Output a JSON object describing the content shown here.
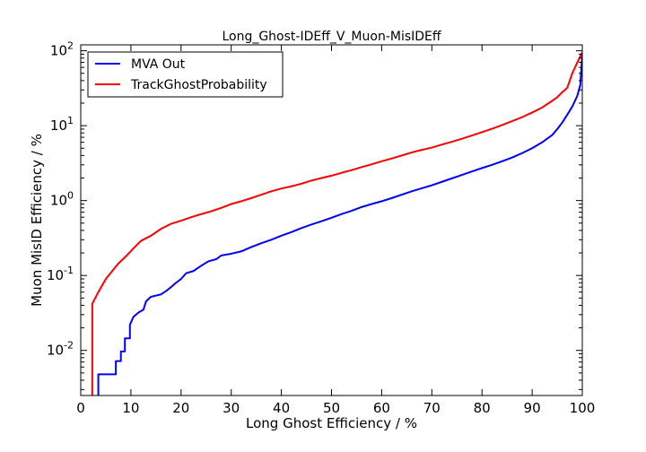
{
  "chart_data": {
    "type": "line",
    "title": "Long_Ghost-IDEff_V_Muon-MisIDEff",
    "xlabel": "Long Ghost Efficiency / %",
    "ylabel": "Muon MisID Efficiency / %",
    "xlim": [
      0,
      100
    ],
    "ylim": [
      0.0025,
      120
    ],
    "yscale": "log",
    "grid": false,
    "legend_position": "top-left",
    "x_ticks": [
      0,
      10,
      20,
      30,
      40,
      50,
      60,
      70,
      80,
      90,
      100
    ],
    "x_tick_labels": [
      "0",
      "10",
      "20",
      "30",
      "40",
      "50",
      "60",
      "70",
      "80",
      "90",
      "100"
    ],
    "y_ticks": [
      0.01,
      0.1,
      1,
      10,
      100
    ],
    "y_tick_labels": [
      {
        "base": "10",
        "exp": "-2"
      },
      {
        "base": "10",
        "exp": "-1"
      },
      {
        "base": "10",
        "exp": "0"
      },
      {
        "base": "10",
        "exp": "1"
      },
      {
        "base": "10",
        "exp": "2"
      }
    ],
    "series": [
      {
        "name": "MVA Out",
        "color": "#0000ff",
        "points": [
          [
            3.5,
            0.0025
          ],
          [
            3.5,
            0.0048
          ],
          [
            7,
            0.0048
          ],
          [
            7,
            0.0072
          ],
          [
            8,
            0.0072
          ],
          [
            8,
            0.0097
          ],
          [
            8.8,
            0.0097
          ],
          [
            8.8,
            0.0145
          ],
          [
            9.8,
            0.0145
          ],
          [
            9.8,
            0.022
          ],
          [
            10.5,
            0.028
          ],
          [
            11.5,
            0.032
          ],
          [
            12.5,
            0.035
          ],
          [
            13,
            0.045
          ],
          [
            14,
            0.052
          ],
          [
            16,
            0.056
          ],
          [
            17,
            0.062
          ],
          [
            18,
            0.07
          ],
          [
            19,
            0.08
          ],
          [
            20,
            0.09
          ],
          [
            21,
            0.107
          ],
          [
            22.5,
            0.115
          ],
          [
            24,
            0.135
          ],
          [
            25.5,
            0.155
          ],
          [
            27,
            0.165
          ],
          [
            28,
            0.185
          ],
          [
            30,
            0.195
          ],
          [
            32,
            0.21
          ],
          [
            34,
            0.24
          ],
          [
            36,
            0.27
          ],
          [
            38,
            0.3
          ],
          [
            40,
            0.34
          ],
          [
            42,
            0.38
          ],
          [
            44,
            0.43
          ],
          [
            46,
            0.48
          ],
          [
            48,
            0.53
          ],
          [
            50,
            0.59
          ],
          [
            52,
            0.66
          ],
          [
            54,
            0.73
          ],
          [
            56,
            0.82
          ],
          [
            58,
            0.9
          ],
          [
            60,
            0.98
          ],
          [
            62,
            1.08
          ],
          [
            64,
            1.2
          ],
          [
            66,
            1.33
          ],
          [
            68,
            1.46
          ],
          [
            70,
            1.6
          ],
          [
            72,
            1.78
          ],
          [
            74,
            1.98
          ],
          [
            76,
            2.2
          ],
          [
            78,
            2.45
          ],
          [
            80,
            2.72
          ],
          [
            82,
            3.0
          ],
          [
            84,
            3.35
          ],
          [
            86,
            3.75
          ],
          [
            88,
            4.3
          ],
          [
            90,
            5.0
          ],
          [
            92,
            6.0
          ],
          [
            94,
            7.5
          ],
          [
            95,
            9.0
          ],
          [
            96,
            11.0
          ],
          [
            97,
            14.0
          ],
          [
            98,
            18.0
          ],
          [
            99,
            25.0
          ],
          [
            99.6,
            35.0
          ],
          [
            100,
            90.0
          ]
        ]
      },
      {
        "name": "TrackGhostProbability",
        "color": "#ff0000",
        "points": [
          [
            2.3,
            0.0025
          ],
          [
            2.3,
            0.042
          ],
          [
            3.5,
            0.06
          ],
          [
            5,
            0.09
          ],
          [
            6.5,
            0.12
          ],
          [
            7.5,
            0.145
          ],
          [
            9,
            0.18
          ],
          [
            10.5,
            0.23
          ],
          [
            12,
            0.29
          ],
          [
            14,
            0.34
          ],
          [
            16,
            0.42
          ],
          [
            18,
            0.49
          ],
          [
            20,
            0.54
          ],
          [
            22,
            0.6
          ],
          [
            24,
            0.66
          ],
          [
            26,
            0.72
          ],
          [
            28,
            0.8
          ],
          [
            30,
            0.9
          ],
          [
            32,
            0.98
          ],
          [
            34,
            1.08
          ],
          [
            36,
            1.2
          ],
          [
            38,
            1.33
          ],
          [
            40,
            1.45
          ],
          [
            42,
            1.55
          ],
          [
            44,
            1.68
          ],
          [
            46,
            1.85
          ],
          [
            48,
            2.0
          ],
          [
            50,
            2.15
          ],
          [
            52,
            2.35
          ],
          [
            54,
            2.55
          ],
          [
            56,
            2.8
          ],
          [
            58,
            3.05
          ],
          [
            60,
            3.35
          ],
          [
            62,
            3.65
          ],
          [
            64,
            4.0
          ],
          [
            66,
            4.4
          ],
          [
            68,
            4.75
          ],
          [
            70,
            5.1
          ],
          [
            72,
            5.6
          ],
          [
            74,
            6.1
          ],
          [
            76,
            6.7
          ],
          [
            78,
            7.4
          ],
          [
            80,
            8.2
          ],
          [
            82,
            9.1
          ],
          [
            84,
            10.2
          ],
          [
            86,
            11.5
          ],
          [
            88,
            13.0
          ],
          [
            90,
            15.0
          ],
          [
            92,
            17.5
          ],
          [
            94,
            21.5
          ],
          [
            95,
            24.0
          ],
          [
            96,
            28.0
          ],
          [
            97,
            32.0
          ],
          [
            98,
            50.0
          ],
          [
            99,
            70.0
          ],
          [
            100,
            95.0
          ]
        ]
      }
    ]
  }
}
